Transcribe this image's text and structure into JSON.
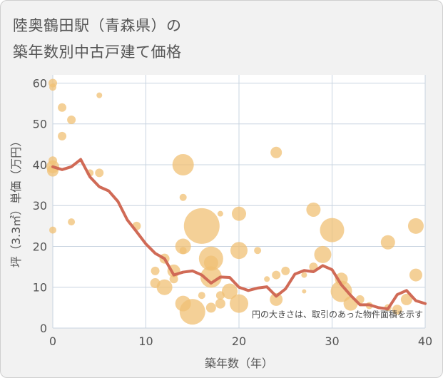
{
  "title_line1": "陸奥鶴田駅（青森県）の",
  "title_line2": "築年数別中古戸建て価格",
  "chart_data": {
    "type": "scatter+line",
    "xlabel": "築年数（年）",
    "ylabel": "坪（3.3㎡）単価（万円）",
    "xlim": [
      0,
      40
    ],
    "ylim": [
      0,
      62
    ],
    "xticks": [
      0,
      10,
      20,
      30,
      40
    ],
    "yticks": [
      0,
      10,
      20,
      30,
      40,
      50,
      60
    ],
    "note": "円の大きさは、取引のあった物件面積を示す",
    "colors": {
      "bubble": "#f0c074",
      "line": "#d06a56",
      "plot_bg": "#ffffff",
      "grid": "#c8d4e0"
    },
    "bubbles": [
      {
        "x": 0,
        "y": 60,
        "s": 6
      },
      {
        "x": 0,
        "y": 59,
        "s": 5
      },
      {
        "x": 0,
        "y": 41,
        "s": 6
      },
      {
        "x": 0,
        "y": 39.5,
        "s": 9
      },
      {
        "x": 0,
        "y": 38.5,
        "s": 8
      },
      {
        "x": 0,
        "y": 24,
        "s": 5
      },
      {
        "x": 1,
        "y": 54,
        "s": 6
      },
      {
        "x": 1,
        "y": 47,
        "s": 6
      },
      {
        "x": 2,
        "y": 51,
        "s": 6
      },
      {
        "x": 2,
        "y": 26,
        "s": 5
      },
      {
        "x": 5,
        "y": 57,
        "s": 4
      },
      {
        "x": 4,
        "y": 38,
        "s": 5
      },
      {
        "x": 5,
        "y": 38,
        "s": 6
      },
      {
        "x": 9,
        "y": 25,
        "s": 6
      },
      {
        "x": 12,
        "y": 17,
        "s": 7
      },
      {
        "x": 11,
        "y": 14,
        "s": 6
      },
      {
        "x": 11,
        "y": 11,
        "s": 7
      },
      {
        "x": 12,
        "y": 10,
        "s": 11
      },
      {
        "x": 13,
        "y": 14,
        "s": 9
      },
      {
        "x": 13,
        "y": 12,
        "s": 6
      },
      {
        "x": 14,
        "y": 40,
        "s": 15
      },
      {
        "x": 14,
        "y": 32,
        "s": 5
      },
      {
        "x": 14,
        "y": 20,
        "s": 11
      },
      {
        "x": 14,
        "y": 19,
        "s": 5
      },
      {
        "x": 14,
        "y": 6,
        "s": 11
      },
      {
        "x": 15,
        "y": 4,
        "s": 18
      },
      {
        "x": 16,
        "y": 25,
        "s": 25
      },
      {
        "x": 16,
        "y": 8,
        "s": 5
      },
      {
        "x": 17,
        "y": 17,
        "s": 17
      },
      {
        "x": 17,
        "y": 16,
        "s": 10
      },
      {
        "x": 17,
        "y": 12.5,
        "s": 15
      },
      {
        "x": 17,
        "y": 5,
        "s": 7
      },
      {
        "x": 18,
        "y": 28,
        "s": 4
      },
      {
        "x": 18,
        "y": 8,
        "s": 6
      },
      {
        "x": 18,
        "y": 6,
        "s": 7
      },
      {
        "x": 19,
        "y": 9,
        "s": 11
      },
      {
        "x": 20,
        "y": 28,
        "s": 10
      },
      {
        "x": 20,
        "y": 19,
        "s": 12
      },
      {
        "x": 20,
        "y": 6,
        "s": 13
      },
      {
        "x": 22,
        "y": 19,
        "s": 5
      },
      {
        "x": 23,
        "y": 12,
        "s": 4
      },
      {
        "x": 24,
        "y": 43,
        "s": 8
      },
      {
        "x": 24,
        "y": 13,
        "s": 6
      },
      {
        "x": 24,
        "y": 7,
        "s": 9
      },
      {
        "x": 25,
        "y": 14,
        "s": 6
      },
      {
        "x": 27,
        "y": 13,
        "s": 4
      },
      {
        "x": 27,
        "y": 9,
        "s": 3
      },
      {
        "x": 28,
        "y": 29,
        "s": 10
      },
      {
        "x": 28,
        "y": 15,
        "s": 6
      },
      {
        "x": 29,
        "y": 18,
        "s": 12
      },
      {
        "x": 30,
        "y": 24,
        "s": 17
      },
      {
        "x": 31,
        "y": 12,
        "s": 9
      },
      {
        "x": 31,
        "y": 9,
        "s": 15
      },
      {
        "x": 32,
        "y": 6,
        "s": 10
      },
      {
        "x": 33,
        "y": 7,
        "s": 6
      },
      {
        "x": 34,
        "y": 5.5,
        "s": 5
      },
      {
        "x": 36,
        "y": 21,
        "s": 10
      },
      {
        "x": 36,
        "y": 5,
        "s": 5
      },
      {
        "x": 37,
        "y": 4.5,
        "s": 7
      },
      {
        "x": 38,
        "y": 7,
        "s": 8
      },
      {
        "x": 39,
        "y": 25,
        "s": 11
      },
      {
        "x": 39,
        "y": 13,
        "s": 9
      }
    ],
    "line": {
      "x": [
        0,
        1,
        2,
        3,
        4,
        5,
        6,
        7,
        8,
        9,
        10,
        11,
        12,
        13,
        14,
        15,
        16,
        17,
        18,
        19,
        20,
        21,
        22,
        23,
        24,
        25,
        26,
        27,
        28,
        29,
        30,
        31,
        32,
        33,
        34,
        35,
        36,
        37,
        38,
        39,
        40
      ],
      "y": [
        39.5,
        38.8,
        39.5,
        41.3,
        37,
        34.6,
        33.6,
        31,
        26.5,
        23.6,
        20.6,
        18.3,
        17,
        13,
        13.7,
        14,
        13,
        11,
        12.5,
        12.4,
        10,
        9.2,
        9.8,
        10.1,
        7.8,
        9.6,
        13.2,
        14.1,
        13.8,
        15.3,
        14.3,
        10.6,
        8,
        5.7,
        5.7,
        5,
        4.7,
        8.2,
        9.2,
        6.7,
        6
      ]
    }
  }
}
